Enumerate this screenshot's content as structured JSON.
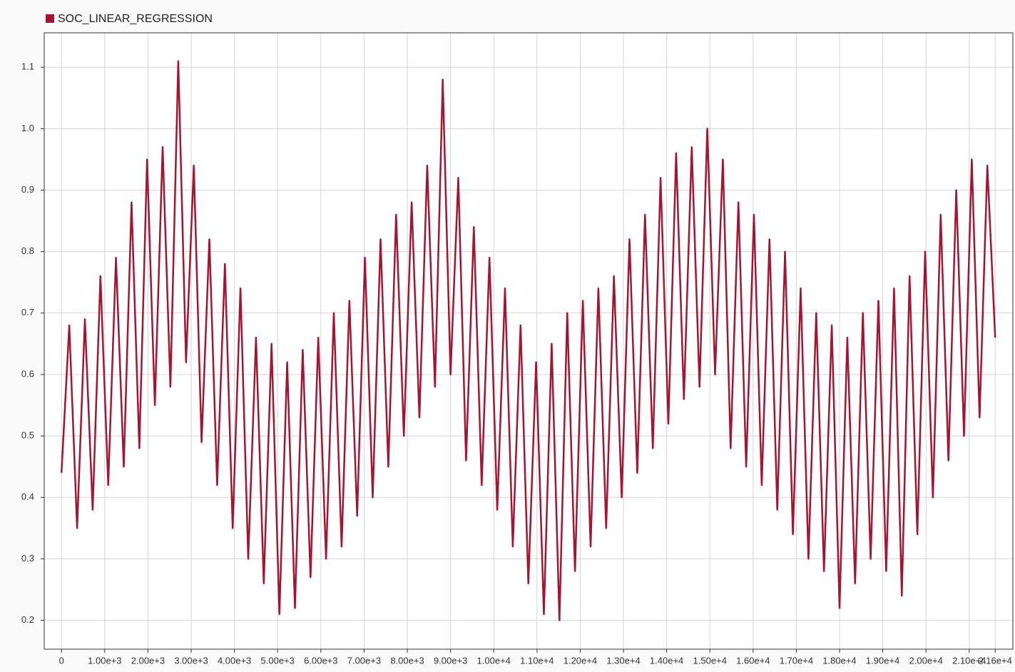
{
  "chart_data": {
    "type": "line",
    "series": [
      {
        "name": "SOC_LINEAR_REGRESSION",
        "color": "#a31530",
        "x": [
          0,
          180,
          360,
          540,
          720,
          900,
          1080,
          1260,
          1440,
          1620,
          1800,
          1980,
          2160,
          2340,
          2520,
          2700,
          2880,
          3060,
          3240,
          3420,
          3600,
          3780,
          3960,
          4140,
          4320,
          4500,
          4680,
          4860,
          5040,
          5220,
          5400,
          5580,
          5760,
          5940,
          6120,
          6300,
          6480,
          6660,
          6840,
          7020,
          7200,
          7380,
          7560,
          7740,
          7920,
          8100,
          8280,
          8460,
          8640,
          8820,
          9000,
          9180,
          9360,
          9540,
          9720,
          9900,
          10080,
          10260,
          10440,
          10620,
          10800,
          10980,
          11160,
          11340,
          11520,
          11700,
          11880,
          12060,
          12240,
          12420,
          12600,
          12780,
          12960,
          13140,
          13320,
          13500,
          13680,
          13860,
          14040,
          14220,
          14400,
          14580,
          14760,
          14940,
          15120,
          15300,
          15480,
          15660,
          15840,
          16020,
          16200,
          16380,
          16560,
          16740,
          16920,
          17100,
          17280,
          17460,
          17640,
          17820,
          18000,
          18180,
          18360,
          18540,
          18720,
          18900,
          19080,
          19260,
          19440,
          19620,
          19800,
          19980,
          20160,
          20340,
          20520,
          20700,
          20880,
          21060,
          21240,
          21420,
          21600
        ],
        "values": [
          0.44,
          0.68,
          0.35,
          0.69,
          0.38,
          0.76,
          0.42,
          0.79,
          0.45,
          0.88,
          0.48,
          0.95,
          0.55,
          0.97,
          0.58,
          1.11,
          0.62,
          0.94,
          0.49,
          0.82,
          0.42,
          0.78,
          0.35,
          0.74,
          0.3,
          0.66,
          0.26,
          0.65,
          0.21,
          0.62,
          0.22,
          0.64,
          0.27,
          0.66,
          0.3,
          0.7,
          0.32,
          0.72,
          0.37,
          0.79,
          0.4,
          0.82,
          0.45,
          0.86,
          0.5,
          0.88,
          0.53,
          0.94,
          0.58,
          1.08,
          0.6,
          0.92,
          0.46,
          0.84,
          0.42,
          0.79,
          0.38,
          0.74,
          0.32,
          0.68,
          0.26,
          0.62,
          0.21,
          0.65,
          0.2,
          0.7,
          0.28,
          0.72,
          0.32,
          0.74,
          0.35,
          0.76,
          0.4,
          0.82,
          0.44,
          0.86,
          0.48,
          0.92,
          0.52,
          0.96,
          0.56,
          0.97,
          0.58,
          1.0,
          0.6,
          0.95,
          0.48,
          0.88,
          0.45,
          0.86,
          0.42,
          0.82,
          0.38,
          0.8,
          0.34,
          0.74,
          0.3,
          0.7,
          0.28,
          0.68,
          0.22,
          0.66,
          0.26,
          0.7,
          0.3,
          0.72,
          0.28,
          0.74,
          0.24,
          0.76,
          0.34,
          0.8,
          0.4,
          0.86,
          0.46,
          0.9,
          0.5,
          0.95,
          0.53,
          0.94,
          0.66
        ]
      }
    ],
    "xlim": [
      -400,
      22010
    ],
    "ylim": [
      0.153,
      1.156
    ],
    "xticks": [
      0,
      {
        "value": 1000,
        "label": "1.00e+3"
      },
      {
        "value": 2000,
        "label": "2.00e+3"
      },
      {
        "value": 3000,
        "label": "3.00e+3"
      },
      {
        "value": 4000,
        "label": "4.00e+3"
      },
      {
        "value": 5000,
        "label": "5.00e+3"
      },
      {
        "value": 6000,
        "label": "6.00e+3"
      },
      {
        "value": 7000,
        "label": "7.00e+3"
      },
      {
        "value": 8000,
        "label": "8.00e+3"
      },
      {
        "value": 9000,
        "label": "9.00e+3"
      },
      {
        "value": 10000,
        "label": "1.00e+4"
      },
      {
        "value": 11000,
        "label": "1.10e+4"
      },
      {
        "value": 12000,
        "label": "1.20e+4"
      },
      {
        "value": 13000,
        "label": "1.30e+4"
      },
      {
        "value": 14000,
        "label": "1.40e+4"
      },
      {
        "value": 15000,
        "label": "1.50e+4"
      },
      {
        "value": 16000,
        "label": "1.60e+4"
      },
      {
        "value": 17000,
        "label": "1.70e+4"
      },
      {
        "value": 18000,
        "label": "1.80e+4"
      },
      {
        "value": 19000,
        "label": "1.90e+4"
      },
      {
        "value": 20000,
        "label": "2.00e+4"
      },
      {
        "value": 21000,
        "label": "2.10e+4"
      },
      {
        "value": 21600,
        "label": "2.16e+4"
      }
    ],
    "yticks": [
      0.2,
      0.3,
      0.4,
      0.5,
      0.6,
      0.7,
      0.8,
      0.9,
      {
        "value": 1,
        "label": "1.0"
      },
      1.1
    ],
    "grid": true,
    "legend": "top-left"
  }
}
